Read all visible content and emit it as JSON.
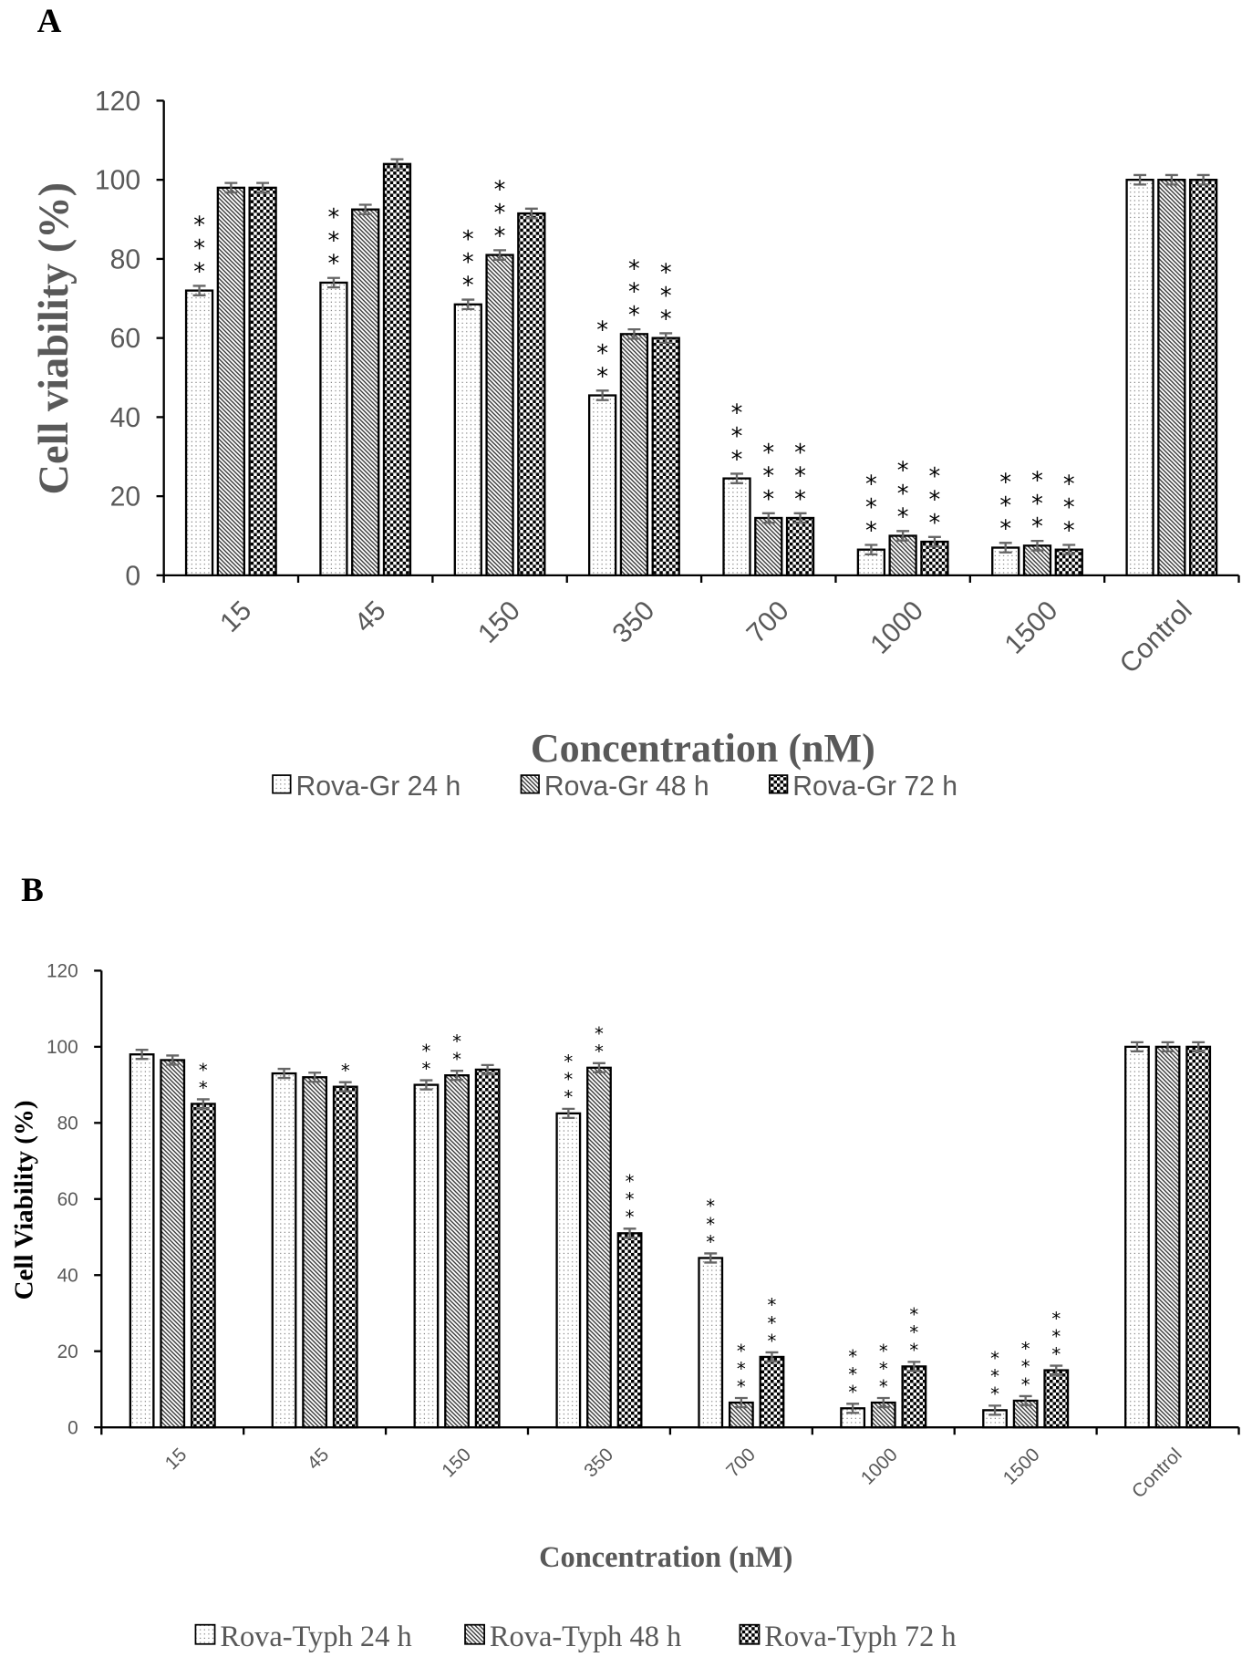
{
  "chart_data": [
    {
      "panel": "A",
      "type": "bar",
      "ylabel": "Cell viability (%)",
      "xlabel": "Concentration (nM)",
      "ylim": [
        0,
        120
      ],
      "yticks": [
        0,
        20,
        40,
        60,
        80,
        100,
        120
      ],
      "categories": [
        "15",
        "45",
        "150",
        "350",
        "700",
        "1000",
        "1500",
        "Control"
      ],
      "series": [
        {
          "name": "Rova-Gr 24 h",
          "pattern": "dots",
          "values": [
            72,
            74,
            68.5,
            45.5,
            24.5,
            6.5,
            7,
            100
          ],
          "stars": [
            "***",
            "***",
            "***",
            "***",
            "***",
            "***",
            "***",
            ""
          ]
        },
        {
          "name": "Rova-Gr 48 h",
          "pattern": "hatch",
          "values": [
            98,
            92.5,
            81,
            61,
            14.5,
            10,
            7.5,
            100
          ],
          "stars": [
            "",
            "",
            "***",
            "***",
            "***",
            "***",
            "***",
            ""
          ]
        },
        {
          "name": "Rova-Gr 72 h",
          "pattern": "check",
          "values": [
            98,
            104,
            91.5,
            60,
            14.5,
            8.5,
            6.5,
            100
          ],
          "stars": [
            "",
            "",
            "",
            "***",
            "***",
            "***",
            "***",
            ""
          ]
        }
      ]
    },
    {
      "panel": "B",
      "type": "bar",
      "ylabel": "Cell Viability (%)",
      "xlabel": "Concentration (nM)",
      "ylim": [
        0,
        120
      ],
      "yticks": [
        0,
        20,
        40,
        60,
        80,
        100,
        120
      ],
      "categories": [
        "15",
        "45",
        "150",
        "350",
        "700",
        "1000",
        "1500",
        "Control"
      ],
      "series": [
        {
          "name": "Rova-Typh 24 h",
          "pattern": "dots",
          "values": [
            98,
            93,
            90,
            82.5,
            44.5,
            5,
            4.5,
            100
          ],
          "stars": [
            "",
            "",
            "**",
            "***",
            "***",
            "***",
            "***",
            ""
          ]
        },
        {
          "name": "Rova-Typh 48 h",
          "pattern": "hatch",
          "values": [
            96.5,
            92,
            92.5,
            94.5,
            6.5,
            6.5,
            7,
            100
          ],
          "stars": [
            "",
            "",
            "**",
            "**",
            "***",
            "***",
            "***",
            ""
          ]
        },
        {
          "name": "Rova-Typh 72 h",
          "pattern": "check",
          "values": [
            85,
            89.5,
            94,
            51,
            18.5,
            16,
            15,
            100
          ],
          "stars": [
            "**",
            "*",
            "",
            "***",
            "***",
            "***",
            "***",
            ""
          ]
        }
      ]
    }
  ]
}
